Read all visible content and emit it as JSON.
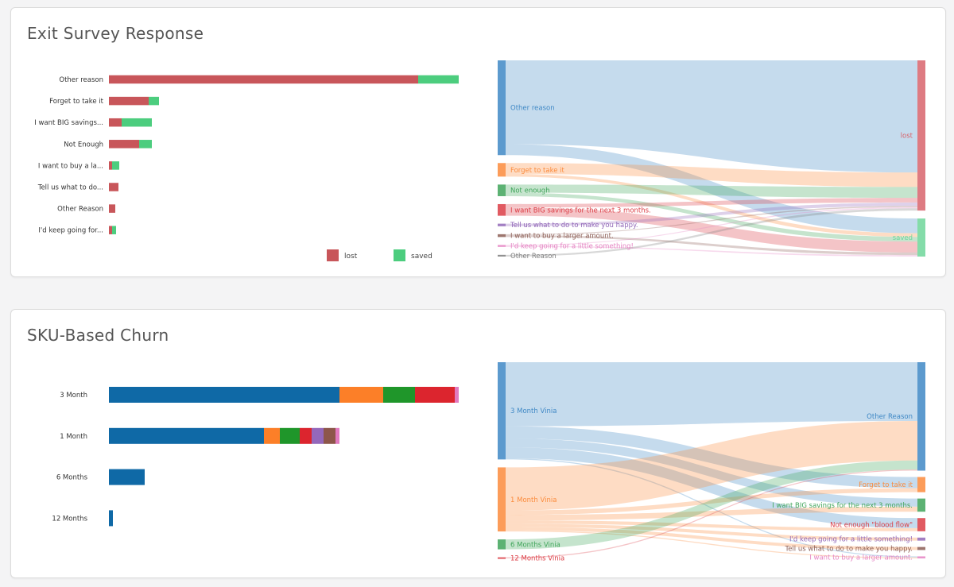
{
  "colors": {
    "lost": "#c8565a",
    "saved": "#4ccd7e"
  },
  "chart_data": [
    {
      "type": "bar",
      "orientation": "horizontal",
      "title": "Exit Survey Response",
      "categories": [
        "Other reason",
        "Forget to take it",
        "I want BIG savings...",
        "Not Enough",
        "I want to buy a la...",
        "Tell us what to do...",
        "Other Reason",
        "I'd keep going for..."
      ],
      "series": [
        {
          "name": "lost",
          "color": "#c8565a",
          "values": [
            389,
            50,
            16,
            38,
            4,
            12,
            8,
            4
          ]
        },
        {
          "name": "saved",
          "color": "#4ccd7e",
          "values": [
            51,
            13,
            38,
            16,
            9,
            0,
            0,
            5
          ]
        }
      ],
      "legend": "bottom"
    },
    {
      "type": "sankey",
      "sources": [
        {
          "name": "Other reason",
          "color": "#3f88c5"
        },
        {
          "name": "Forget to take it",
          "color": "#fb8b3c"
        },
        {
          "name": "Not enough",
          "color": "#40a55a"
        },
        {
          "name": "I want BIG savings for the next 3 months.",
          "color": "#dc3d45"
        },
        {
          "name": "Tell us what to do to make you happy.",
          "color": "#9268b8"
        },
        {
          "name": "I want to buy a larger amount.",
          "color": "#8c5e55"
        },
        {
          "name": "I'd keep going for a little something!",
          "color": "#e584c3"
        },
        {
          "name": "Other Reason",
          "color": "#7f7f7f"
        }
      ],
      "targets": [
        {
          "name": "lost",
          "color": "#d8646c"
        },
        {
          "name": "saved",
          "color": "#6ed69a"
        }
      ],
      "links": [
        {
          "source": 0,
          "target": 0,
          "value": 389
        },
        {
          "source": 0,
          "target": 1,
          "value": 51
        },
        {
          "source": 1,
          "target": 0,
          "value": 50
        },
        {
          "source": 1,
          "target": 1,
          "value": 13
        },
        {
          "source": 2,
          "target": 0,
          "value": 38
        },
        {
          "source": 2,
          "target": 1,
          "value": 16
        },
        {
          "source": 3,
          "target": 0,
          "value": 16
        },
        {
          "source": 3,
          "target": 1,
          "value": 38
        },
        {
          "source": 4,
          "target": 0,
          "value": 12
        },
        {
          "source": 5,
          "target": 0,
          "value": 4
        },
        {
          "source": 5,
          "target": 1,
          "value": 9
        },
        {
          "source": 6,
          "target": 0,
          "value": 4
        },
        {
          "source": 6,
          "target": 1,
          "value": 5
        },
        {
          "source": 7,
          "target": 0,
          "value": 8
        }
      ]
    },
    {
      "type": "bar",
      "orientation": "horizontal",
      "stacked": true,
      "title": "SKU-Based Churn",
      "categories": [
        "3 Month",
        "1 Month",
        "6 Months",
        "12 Months"
      ],
      "series": [
        {
          "name": "Other Reason",
          "color": "#0f69a6",
          "values": [
            290,
            195,
            45,
            5
          ]
        },
        {
          "name": "Forget to take it",
          "color": "#fc7f28",
          "values": [
            55,
            20,
            0,
            0
          ]
        },
        {
          "name": "I want BIG savings for the next 3 months.",
          "color": "#1f962a",
          "values": [
            40,
            25,
            0,
            0
          ]
        },
        {
          "name": "Not enough \"blood flow\"",
          "color": "#dc252e",
          "values": [
            50,
            15,
            0,
            0
          ]
        },
        {
          "name": "I'd keep going for a little something!",
          "color": "#9468bb",
          "values": [
            0,
            15,
            0,
            0
          ]
        },
        {
          "name": "Tell us what to do to make you happy.",
          "color": "#8d564a",
          "values": [
            0,
            15,
            0,
            0
          ]
        },
        {
          "name": "I want to buy a larger amount.",
          "color": "#e17ac0",
          "values": [
            5,
            5,
            0,
            0
          ]
        }
      ]
    },
    {
      "type": "sankey",
      "sources": [
        {
          "name": "3 Month Vinia",
          "color": "#3f88c5"
        },
        {
          "name": "1 Month Vinia",
          "color": "#fb8b3c"
        },
        {
          "name": "6 Months Vinia",
          "color": "#40a55a"
        },
        {
          "name": "12 Months Vinia",
          "color": "#dc3d45"
        }
      ],
      "targets": [
        {
          "name": "Other Reason",
          "color": "#3f88c5"
        },
        {
          "name": "Forget to take it",
          "color": "#fb8b3c"
        },
        {
          "name": "I want BIG savings for the next 3 months.",
          "color": "#40a55a"
        },
        {
          "name": "Not enough \"blood flow\"",
          "color": "#dc3d45"
        },
        {
          "name": "I'd keep going for a little something!",
          "color": "#9268b8"
        },
        {
          "name": "Tell us what to do to make you happy.",
          "color": "#8c5e55"
        },
        {
          "name": "I want to buy a larger amount.",
          "color": "#e584c3"
        }
      ],
      "links": [
        {
          "source": 0,
          "target": 0,
          "value": 290
        },
        {
          "source": 0,
          "target": 1,
          "value": 55
        },
        {
          "source": 0,
          "target": 2,
          "value": 40
        },
        {
          "source": 0,
          "target": 3,
          "value": 50
        },
        {
          "source": 0,
          "target": 6,
          "value": 5
        },
        {
          "source": 1,
          "target": 0,
          "value": 195
        },
        {
          "source": 1,
          "target": 1,
          "value": 20
        },
        {
          "source": 1,
          "target": 2,
          "value": 25
        },
        {
          "source": 1,
          "target": 3,
          "value": 15
        },
        {
          "source": 1,
          "target": 4,
          "value": 15
        },
        {
          "source": 1,
          "target": 5,
          "value": 15
        },
        {
          "source": 1,
          "target": 6,
          "value": 5
        },
        {
          "source": 2,
          "target": 0,
          "value": 45
        },
        {
          "source": 3,
          "target": 0,
          "value": 5
        }
      ]
    }
  ]
}
